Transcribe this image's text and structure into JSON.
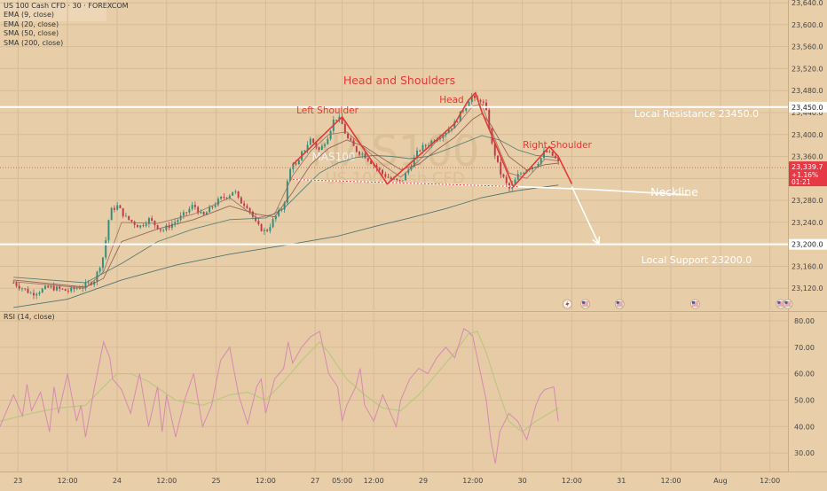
{
  "header": {
    "title": "US 100 Cash CFD · 30 · FOREXCOM",
    "indicators": [
      "EMA (9, close)",
      "EMA (20, close)",
      "SMA (50, close)",
      "SMA (200, close)"
    ]
  },
  "watermark": {
    "symbol": "NAS100",
    "name": "US 100 Cash CFD",
    "logo_text": "MAS100"
  },
  "colors": {
    "background": "#e9cfa9",
    "pattern": "#e53935",
    "white_lines": "#ffffff",
    "ma_fast": "#a06a60",
    "ma_slow": "#3f6b6b",
    "rsi_line": "#d889b0",
    "rsi_ma": "#bcc87e",
    "price_badge": "#e53946"
  },
  "chart_data": [
    {
      "type": "line",
      "title": "US 100 Cash CFD · 30 · FOREXCOM",
      "ylim": [
        23080,
        23645
      ],
      "y_ticks": [
        23120,
        23160,
        23200,
        23240,
        23280,
        23320,
        23360,
        23400,
        23440,
        23480,
        23520,
        23560,
        23600,
        23640
      ],
      "x_ticks": [
        "23",
        "12:00",
        "24",
        "12:00",
        "25",
        "12:00",
        "27",
        "05:00",
        "12:00",
        "29",
        "12:00",
        "30",
        "12:00",
        "31",
        "12:00",
        "Aug",
        "12:00"
      ],
      "x_tick_pos": [
        0.5,
        6,
        11.5,
        17,
        22.5,
        28,
        33.5,
        36.5,
        40,
        45.5,
        51,
        56.5,
        62,
        67.5,
        73,
        78.5,
        84
      ],
      "x_range": [
        -1.5,
        86
      ],
      "price_key_points": {
        "x": [
          0,
          2,
          4,
          6,
          8,
          9,
          10,
          10.7,
          11.5,
          12.5,
          14,
          15,
          16.5,
          18,
          19,
          20,
          21,
          22,
          23,
          24,
          24.5,
          25,
          26,
          27,
          28,
          29,
          30,
          30.5,
          31,
          31.5,
          32,
          33,
          34,
          35,
          35.5,
          36,
          36.5,
          37,
          38,
          39,
          40,
          41,
          42,
          43,
          44,
          45,
          46,
          47,
          48,
          49,
          50,
          50.5,
          51,
          51.3,
          51.8,
          52.2,
          52.7,
          53,
          53.5,
          54,
          54.5,
          55,
          55.5,
          56,
          57,
          58,
          58.5,
          59,
          59.5,
          60,
          60.5
        ],
        "y": [
          23130,
          23110,
          23122,
          23115,
          23125,
          23135,
          23180,
          23260,
          23270,
          23248,
          23232,
          23246,
          23225,
          23242,
          23255,
          23272,
          23250,
          23268,
          23283,
          23291,
          23300,
          23280,
          23270,
          23235,
          23222,
          23248,
          23270,
          23322,
          23352,
          23340,
          23365,
          23392,
          23370,
          23400,
          23425,
          23432,
          23418,
          23395,
          23372,
          23362,
          23345,
          23328,
          23318,
          23313,
          23340,
          23372,
          23382,
          23395,
          23405,
          23420,
          23448,
          23462,
          23472,
          23458,
          23465,
          23455,
          23430,
          23388,
          23362,
          23332,
          23318,
          23300,
          23310,
          23325,
          23338,
          23345,
          23355,
          23370,
          23365,
          23360,
          23348
        ]
      },
      "moving_averages": [
        {
          "name": "EMA (9, close)",
          "x": [
            0,
            8,
            10,
            12,
            16,
            20,
            24,
            27,
            29,
            31,
            33,
            35,
            37,
            39,
            41,
            43,
            45,
            47,
            49,
            51,
            52,
            53,
            55,
            57,
            59,
            60.5
          ],
          "y": [
            23132,
            23120,
            23150,
            23240,
            23238,
            23255,
            23285,
            23248,
            23255,
            23325,
            23370,
            23400,
            23405,
            23375,
            23345,
            23322,
            23352,
            23388,
            23412,
            23452,
            23455,
            23410,
            23330,
            23320,
            23355,
            23352
          ]
        },
        {
          "name": "EMA (20, close)",
          "x": [
            0,
            8,
            10,
            12,
            16,
            20,
            24,
            27,
            29,
            31,
            33,
            35,
            37,
            39,
            41,
            43,
            45,
            47,
            49,
            51,
            52,
            53,
            55,
            57,
            59,
            60.5
          ],
          "y": [
            23135,
            23122,
            23138,
            23205,
            23228,
            23245,
            23270,
            23255,
            23250,
            23295,
            23345,
            23375,
            23390,
            23378,
            23356,
            23336,
            23346,
            23372,
            23395,
            23428,
            23438,
            23418,
            23360,
            23335,
            23345,
            23348
          ]
        },
        {
          "name": "SMA (50, close)",
          "x": [
            0,
            8,
            12,
            16,
            20,
            24,
            28,
            30,
            32,
            34,
            36,
            38,
            40,
            42,
            44,
            46,
            48,
            50,
            52,
            54,
            56,
            58,
            60.5
          ],
          "y": [
            23140,
            23130,
            23165,
            23205,
            23228,
            23245,
            23248,
            23265,
            23298,
            23330,
            23348,
            23358,
            23362,
            23360,
            23356,
            23360,
            23372,
            23385,
            23398,
            23390,
            23372,
            23362,
            23358
          ]
        },
        {
          "name": "SMA (200, close)",
          "x": [
            0,
            6,
            12,
            18,
            24,
            30,
            36,
            40,
            44,
            48,
            52,
            56,
            60.5
          ],
          "y": [
            23085,
            23100,
            23135,
            23162,
            23182,
            23198,
            23215,
            23232,
            23248,
            23265,
            23285,
            23298,
            23308
          ]
        }
      ],
      "current_price": {
        "value": "23,339.7",
        "change": "+1.16%",
        "countdown": "01:21"
      },
      "annotations": {
        "pattern_title": "Head and Shoulders",
        "left_shoulder": "Left Shoulder",
        "head": "Head",
        "right_shoulder": "Right Shoulder",
        "neckline": "Neckline",
        "resistance_label": "Local Resistance 23450.0",
        "resistance_value": 23450,
        "resistance_axis_label": "23,450.0",
        "support_label": "Local Support 23200.0",
        "support_value": 23200,
        "support_axis_label": "23,200.0"
      },
      "pattern_path": {
        "x": [
          31,
          36.5,
          41.5,
          49,
          50.5,
          51.3,
          52,
          55.5,
          59.5,
          60.5,
          62
        ],
        "y": [
          23345,
          23432,
          23310,
          23420,
          23462,
          23476,
          23442,
          23305,
          23378,
          23360,
          23310
        ]
      },
      "neckline": {
        "x": [
          31,
          56,
          64,
          75
        ],
        "y": [
          23318,
          23305,
          23300,
          23290
        ]
      },
      "projection_arrow": {
        "x": [
          62,
          65
        ],
        "y": [
          23305,
          23200
        ]
      }
    },
    {
      "type": "line",
      "title": "RSI (14, close)",
      "ylim": [
        23,
        83
      ],
      "y_ticks": [
        30,
        40,
        50,
        60,
        70,
        80
      ],
      "y_tick_labels": [
        "30.00",
        "40.00",
        "50.00",
        "60.00",
        "70.00",
        "80.00"
      ],
      "series": [
        {
          "name": "RSI",
          "x": [
            -1.5,
            0,
            1,
            1.5,
            2,
            3,
            4,
            4.5,
            5,
            6,
            7,
            7.5,
            8,
            9,
            10,
            10.7,
            11,
            12,
            13,
            14,
            15,
            16,
            16.5,
            17,
            18,
            19,
            20,
            21,
            22,
            23,
            24,
            25,
            26,
            27,
            27.5,
            28,
            29,
            30,
            30.5,
            31,
            32,
            33,
            34,
            34.5,
            35,
            36,
            36.5,
            37,
            38,
            38.5,
            39,
            40,
            41,
            42,
            42.5,
            43,
            44,
            45,
            46,
            47,
            48,
            49,
            50,
            50.5,
            51,
            51.5,
            52,
            52.5,
            53,
            53.5,
            54,
            55,
            56,
            57,
            58,
            58.5,
            59,
            60,
            60.5
          ],
          "y": [
            40,
            52,
            44,
            56,
            46,
            53,
            38,
            55,
            45,
            60,
            42,
            48,
            36,
            55,
            72,
            66,
            58,
            54,
            45,
            60,
            40,
            55,
            38,
            52,
            36,
            50,
            60,
            40,
            48,
            65,
            70,
            52,
            41,
            55,
            58,
            45,
            58,
            62,
            72,
            64,
            70,
            74,
            76,
            68,
            60,
            55,
            42,
            48,
            55,
            62,
            48,
            42,
            52,
            44,
            40,
            50,
            58,
            62,
            60,
            66,
            70,
            66,
            77,
            76,
            74,
            66,
            58,
            50,
            35,
            26,
            38,
            45,
            42,
            35,
            48,
            52,
            54,
            55,
            42
          ]
        },
        {
          "name": "RSI MA",
          "x": [
            -1.5,
            2,
            5,
            8,
            10,
            11.5,
            13,
            15,
            18,
            21,
            24,
            26,
            28,
            30,
            32,
            34,
            35,
            37,
            39,
            41,
            43,
            45,
            47,
            49,
            50.5,
            51.5,
            52.5,
            53.5,
            55,
            56.5,
            58,
            60.5
          ],
          "y": [
            42,
            45,
            47,
            48,
            55,
            60,
            60,
            57,
            50,
            48,
            52,
            53,
            50,
            57,
            65,
            72,
            68,
            58,
            52,
            47,
            46,
            52,
            60,
            68,
            75,
            76,
            68,
            57,
            42,
            38,
            42,
            47
          ]
        }
      ]
    }
  ]
}
